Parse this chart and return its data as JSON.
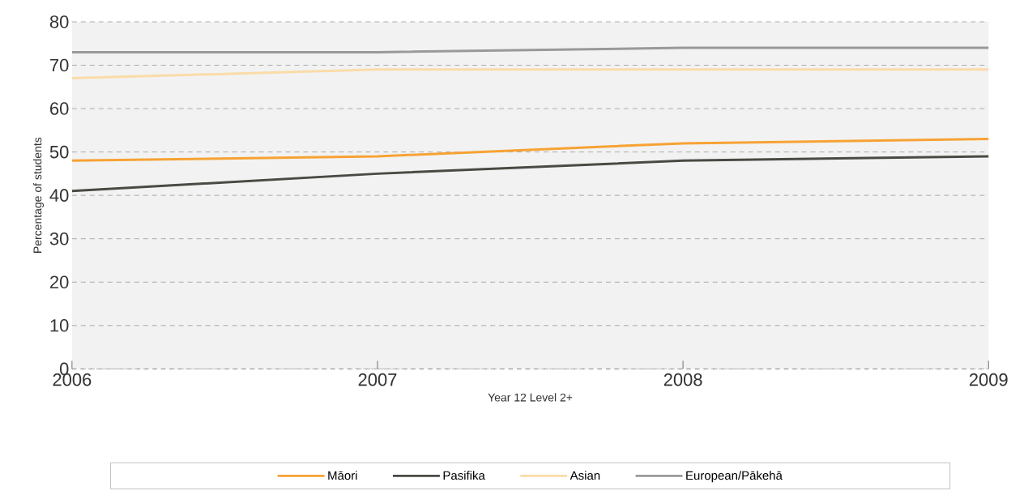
{
  "chart_data": {
    "type": "line",
    "xlabel": "Year 12 Level 2+",
    "ylabel": "Percentage of students",
    "x": [
      2006,
      2007,
      2008,
      2009
    ],
    "xlim": [
      2006,
      2009
    ],
    "xticks": [
      2006,
      2007,
      2008,
      2009
    ],
    "ylim": [
      0,
      80
    ],
    "yticks": [
      0,
      10,
      20,
      30,
      40,
      50,
      60,
      70,
      80
    ],
    "grid": "y",
    "legend": "bottom",
    "series": [
      {
        "name": "Māori",
        "color": "#f7a234",
        "values": [
          48,
          49,
          52,
          53
        ]
      },
      {
        "name": "Pasifika",
        "color": "#4a4a44",
        "values": [
          41,
          45,
          48,
          49
        ]
      },
      {
        "name": "Asian",
        "color": "#fadca8",
        "values": [
          67,
          69,
          69,
          69
        ]
      },
      {
        "name": "European/Pākehā",
        "color": "#999999",
        "values": [
          73,
          73,
          74,
          74
        ]
      }
    ]
  }
}
